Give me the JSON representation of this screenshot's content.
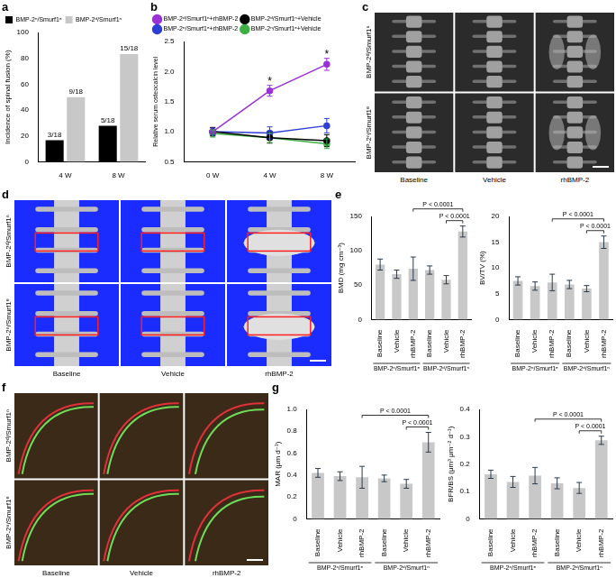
{
  "chart_data": [
    {
      "panel": "a",
      "type": "bar",
      "categories": [
        "4 W",
        "8 W"
      ],
      "y_label": "Incidence of spinal fusion (%)",
      "ylim": [
        0,
        100
      ],
      "yticks": [
        0,
        20,
        40,
        60,
        80,
        100
      ],
      "grid": false,
      "legend": "top-left",
      "data_labels": true,
      "series": [
        {
          "name": "BMP-2ⁿ/Smurf1ᵉ",
          "color": "#000000",
          "values": [
            16.7,
            27.8
          ],
          "value_labels": [
            "3/18",
            "5/18"
          ]
        },
        {
          "name": "BMP-2ᵈ/Smurf1ⁿ",
          "color": "#c8c8c8",
          "values": [
            50,
            83.3
          ],
          "value_labels": [
            "9/18",
            "15/18"
          ]
        }
      ]
    },
    {
      "panel": "b",
      "type": "line",
      "categories": [
        "0 W",
        "4 W",
        "8 W"
      ],
      "y_label": "Relative serum osteocalcin level",
      "ylim": [
        0.5,
        2.5
      ],
      "yticks": [
        0.5,
        {
          "value": 1,
          "label": "1.0"
        },
        1.5,
        {
          "value": 2,
          "label": "2.0"
        },
        2.5
      ],
      "grid": false,
      "legend": "top-left",
      "marker": "circle",
      "series": [
        {
          "name": "BMP-2ᵈ/Smurf1ⁿ+rhBMP-2",
          "color": "#9b30d9",
          "values": [
            1.0,
            1.68,
            2.12
          ],
          "errors": [
            0.07,
            0.09,
            0.1
          ]
        },
        {
          "name": "BMP-2ᵈ/Smurf1ⁿ+Vehicle",
          "color": "#000000",
          "values": [
            1.0,
            0.9,
            0.85
          ],
          "errors": [
            0.07,
            0.09,
            0.1
          ]
        },
        {
          "name": "BMP-2ⁿ/Smurf1ᵉ+rhBMP-2",
          "color": "#2e3fd6",
          "values": [
            1.0,
            0.98,
            1.1
          ],
          "errors": [
            0.06,
            0.1,
            0.12
          ]
        },
        {
          "name": "BMP-2ⁿ/Smurf1ᵉ+Vehicle",
          "color": "#3cb043",
          "values": [
            0.97,
            0.9,
            0.8
          ],
          "errors": [
            0.06,
            0.08,
            0.08
          ]
        }
      ],
      "annotations": [
        {
          "text": "*",
          "x": "4 W"
        },
        {
          "text": "*",
          "x": "8 W"
        }
      ]
    },
    {
      "panel": "e",
      "type": "bar",
      "categories": [
        "Baseline",
        "Vehicle",
        "rhBMP-2",
        "Baseline",
        "Vehicle",
        "rhBMP-2"
      ],
      "category_groups": [
        "BMP-2ⁿ/Smurf1ᵉ",
        "BMP-2ⁿ/Smurf1ᵉ",
        "BMP-2ⁿ/Smurf1ᵉ",
        "BMP-2ᵈ/Smurf1ⁿ",
        "BMP-2ᵈ/Smurf1ⁿ",
        "BMP-2ᵈ/Smurf1ⁿ"
      ],
      "y_label": "BMD (mg cm⁻³)",
      "ylim": [
        0,
        150
      ],
      "yticks": [
        0,
        50,
        100,
        150
      ],
      "grid": false,
      "color": "#c8c8c8",
      "values": [
        80,
        66,
        74,
        72,
        58,
        128
      ],
      "errors": [
        8,
        6,
        17,
        6,
        6,
        8
      ],
      "comparisons": [
        {
          "between": [
            2,
            5
          ],
          "text": "P < 0.0001"
        },
        {
          "between": [
            4,
            5
          ],
          "text": "P < 0.0001"
        }
      ]
    },
    {
      "type": "bar",
      "categories": [
        "Baseline",
        "Vehicle",
        "rhBMP-2",
        "Baseline",
        "Vehicle",
        "rhBMP-2"
      ],
      "category_groups": [
        "BMP-2ⁿ/Smurf1ᵉ",
        "BMP-2ⁿ/Smurf1ᵉ",
        "BMP-2ⁿ/Smurf1ᵉ",
        "BMP-2ᵈ/Smurf1ⁿ",
        "BMP-2ᵈ/Smurf1ⁿ",
        "BMP-2ᵈ/Smurf1ⁿ"
      ],
      "y_label": "BV/TV (%)",
      "ylim": [
        0,
        20
      ],
      "yticks": [
        0,
        5,
        10,
        15,
        20
      ],
      "grid": false,
      "color": "#c8c8c8",
      "values": [
        7.5,
        6.5,
        7.2,
        6.8,
        6.0,
        15.0
      ],
      "errors": [
        0.8,
        0.8,
        1.6,
        0.8,
        0.6,
        1.2
      ],
      "comparisons": [
        {
          "between": [
            2,
            5
          ],
          "text": "P < 0.0001"
        },
        {
          "between": [
            4,
            5
          ],
          "text": "P < 0.0001"
        }
      ]
    },
    {
      "panel": "g",
      "type": "bar",
      "categories": [
        "Baseline",
        "Vehicle",
        "rhBMP-2",
        "Baseline",
        "Vehicle",
        "rhBMP-2"
      ],
      "category_groups": [
        "BMP-2ⁿ/Smurf1ᵉ",
        "BMP-2ⁿ/Smurf1ᵉ",
        "BMP-2ⁿ/Smurf1ᵉ",
        "BMP-2ᵈ/Smurf1ⁿ",
        "BMP-2ᵈ/Smurf1ⁿ",
        "BMP-2ᵈ/Smurf1ⁿ"
      ],
      "y_label": "MAR (μm d⁻¹)",
      "ylim": [
        0,
        1.0
      ],
      "yticks": [
        0,
        0.2,
        0.4,
        0.6,
        0.8,
        {
          "value": 1.0,
          "label": "1.0"
        }
      ],
      "grid": false,
      "color": "#c8c8c8",
      "values": [
        0.42,
        0.39,
        0.38,
        0.37,
        0.32,
        0.7
      ],
      "errors": [
        0.04,
        0.04,
        0.1,
        0.03,
        0.04,
        0.09
      ],
      "comparisons": [
        {
          "between": [
            2,
            5
          ],
          "text": "P < 0.0001"
        },
        {
          "between": [
            4,
            5
          ],
          "text": "P < 0.0001"
        }
      ]
    },
    {
      "type": "bar",
      "categories": [
        "Baseline",
        "Vehicle",
        "rhBMP-2",
        "Baseline",
        "Vehicle",
        "rhBMP-2"
      ],
      "category_groups": [
        "BMP-2ⁿ/Smurf1ᵉ",
        "BMP-2ⁿ/Smurf1ᵉ",
        "BMP-2ⁿ/Smurf1ᵉ",
        "BMP-2ᵈ/Smurf1ⁿ",
        "BMP-2ᵈ/Smurf1ⁿ",
        "BMP-2ᵈ/Smurf1ⁿ"
      ],
      "y_label": "BFR/BS (μm³ μm⁻² d⁻¹)",
      "ylim": [
        0,
        0.4
      ],
      "yticks": [
        0,
        0.1,
        0.2,
        0.3,
        0.4
      ],
      "grid": false,
      "color": "#c8c8c8",
      "values": [
        0.163,
        0.135,
        0.158,
        0.13,
        0.113,
        0.287
      ],
      "errors": [
        0.015,
        0.02,
        0.03,
        0.02,
        0.02,
        0.015
      ],
      "comparisons": [
        {
          "between": [
            2,
            5
          ],
          "text": "P < 0.0001"
        },
        {
          "between": [
            4,
            5
          ],
          "text": "P < 0.0001"
        }
      ]
    }
  ],
  "image_panels": [
    {
      "panel": "c",
      "rows": [
        "BMP-2ᵈ/Smurf1ⁿ",
        "BMP-2ⁿ/Smurf1ᵉ"
      ],
      "columns": [
        "Baseline",
        "Vehicle",
        "rhBMP-2"
      ]
    },
    {
      "panel": "d",
      "rows": [
        "BMP-2ᵈ/Smurf1ⁿ",
        "BMP-2ⁿ/Smurf1ᵉ"
      ],
      "columns": [
        "Baseline",
        "Vehicle",
        "rhBMP-2"
      ]
    },
    {
      "panel": "f",
      "rows": [
        "BMP-2ᵈ/Smurf1ⁿ",
        "BMP-2ⁿ/Smurf1ᵉ"
      ],
      "columns": [
        "Baseline",
        "Vehicle",
        "rhBMP-2"
      ]
    }
  ]
}
